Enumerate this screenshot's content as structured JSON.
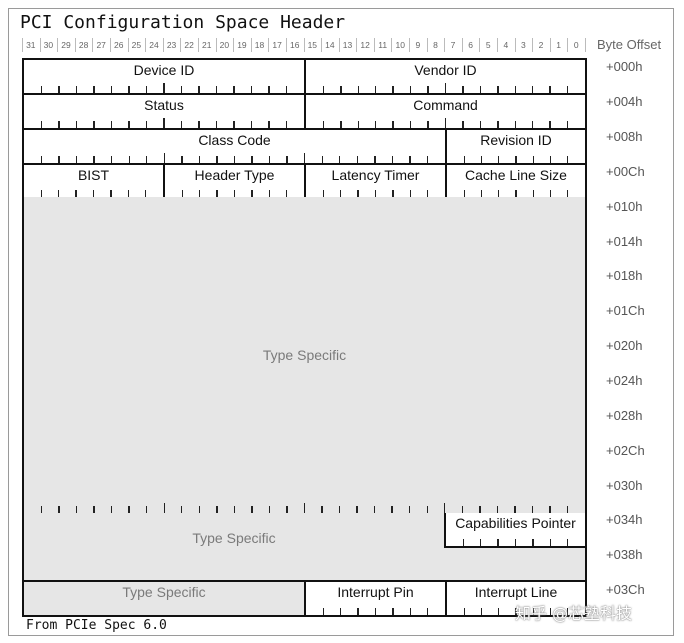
{
  "title": "PCI Configuration Space Header",
  "byte_offset_label": "Byte Offset",
  "footer": "From PCIe Spec 6.0",
  "watermark": "知乎 @芯塾科技",
  "bit_numbers": [
    "31",
    "30",
    "29",
    "28",
    "27",
    "26",
    "25",
    "24",
    "23",
    "22",
    "21",
    "20",
    "19",
    "18",
    "17",
    "16",
    "15",
    "14",
    "13",
    "12",
    "11",
    "10",
    "9",
    "8",
    "7",
    "6",
    "5",
    "4",
    "3",
    "2",
    "1",
    "0"
  ],
  "offsets": [
    "+000h",
    "+004h",
    "+008h",
    "+00Ch",
    "+010h",
    "+014h",
    "+018h",
    "+01Ch",
    "+020h",
    "+024h",
    "+028h",
    "+02Ch",
    "+030h",
    "+034h",
    "+038h",
    "+03Ch"
  ],
  "fields": {
    "device_id": "Device ID",
    "vendor_id": "Vendor ID",
    "status": "Status",
    "command": "Command",
    "class_code": "Class Code",
    "revision_id": "Revision ID",
    "bist": "BIST",
    "header_type": "Header Type",
    "latency_timer": "Latency Timer",
    "cache_line_size": "Cache Line Size",
    "type_specific_large": "Type Specific",
    "type_specific_mid": "Type Specific",
    "capabilities_pointer": "Capabilities Pointer",
    "type_specific_small": "Type Specific",
    "interrupt_pin": "Interrupt Pin",
    "interrupt_line": "Interrupt Line"
  }
}
